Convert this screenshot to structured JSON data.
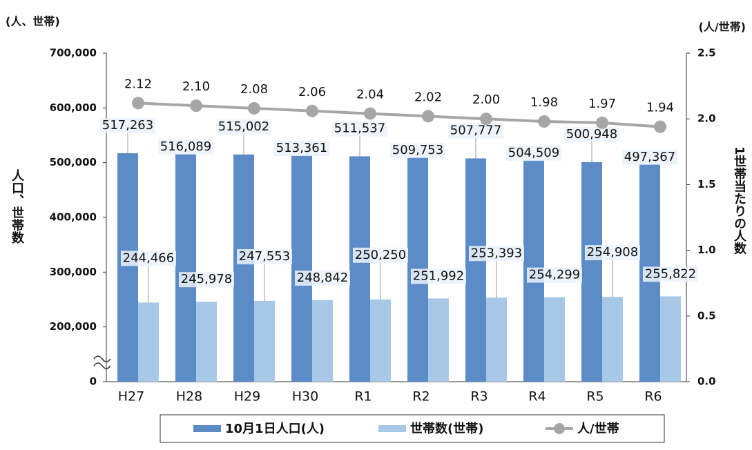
{
  "chart_data": {
    "type": "bar_line",
    "left_unit": "(人、世帯)",
    "right_unit": "(人/世帯)",
    "ylabel": "人口、世帯数",
    "y2label": "1世帯当たりの人数",
    "categories": [
      "H27",
      "H28",
      "H29",
      "H30",
      "R1",
      "R2",
      "R3",
      "R4",
      "R5",
      "R6"
    ],
    "series": [
      {
        "name": "10月1日人口(人)",
        "color": "#5b8cc8",
        "type": "bar",
        "values": [
          517263,
          516089,
          515002,
          513361,
          511537,
          509753,
          507777,
          504509,
          500948,
          497367
        ],
        "value_labels": [
          "517,263",
          "516,089",
          "515,002",
          "513,361",
          "511,537",
          "509,753",
          "507,777",
          "504,509",
          "500,948",
          "497,367"
        ]
      },
      {
        "name": "世帯数(世帯)",
        "color": "#a8c8e8",
        "type": "bar",
        "values": [
          244466,
          245978,
          247553,
          248842,
          250250,
          251992,
          253393,
          254299,
          254908,
          255822
        ],
        "value_labels": [
          "244,466",
          "245,978",
          "247,553",
          "248,842",
          "250,250",
          "251,992",
          "253,393",
          "254,299",
          "254,908",
          "255,822"
        ]
      },
      {
        "name": "人/世帯",
        "color": "#a6a6a6",
        "type": "line",
        "axis": "y2",
        "values": [
          2.12,
          2.1,
          2.08,
          2.06,
          2.04,
          2.02,
          2.0,
          1.98,
          1.97,
          1.94
        ],
        "value_labels": [
          "2.12",
          "2.10",
          "2.08",
          "2.06",
          "2.04",
          "2.02",
          "2.00",
          "1.98",
          "1.97",
          "1.94"
        ]
      }
    ],
    "ylim": [
      0,
      700000
    ],
    "axis_break": true,
    "yticks": [
      0,
      {
        "value": 200000,
        "label": "200,000"
      },
      {
        "value": 300000,
        "label": "300,000"
      },
      {
        "value": 400000,
        "label": "400,000"
      },
      {
        "value": 500000,
        "label": "500,000"
      },
      {
        "value": 600000,
        "label": "600,000"
      },
      {
        "value": 700000,
        "label": "700,000"
      }
    ],
    "y2lim": [
      0,
      2.5
    ],
    "y2ticks": [
      {
        "value": 0,
        "label": "0.0"
      },
      {
        "value": 0.5,
        "label": "0.5"
      },
      {
        "value": 1,
        "label": "1.0"
      },
      {
        "value": 1.5,
        "label": "1.5"
      },
      {
        "value": 2,
        "label": "2.0"
      },
      {
        "value": 2.5,
        "label": "2.5"
      }
    ]
  }
}
